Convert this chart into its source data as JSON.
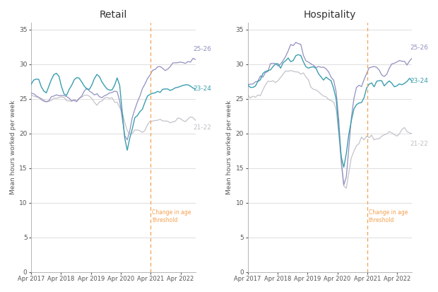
{
  "title_retail": "Retail",
  "title_hospitality": "Hospitality",
  "ylabel": "Mean hours worked per week",
  "color_2122": "#c0c0c8",
  "color_2324": "#3a9ead",
  "color_2526": "#9090c0",
  "vline_color": "#f5a050",
  "vline_label_retail": "Change in age\nthreshold",
  "vline_label_hosp": "Change in age\nthreshold",
  "label_2122": "21-22",
  "label_2324": "23-24",
  "label_2526": "25-26",
  "yticks": [
    0,
    5,
    10,
    15,
    20,
    25,
    30,
    35
  ],
  "ylim": [
    0,
    36
  ],
  "xlim_start": 0,
  "xlim_end": 5.5,
  "vline_x": 4.0,
  "n_points": 66,
  "t_start": 0,
  "t_end": 5.5
}
